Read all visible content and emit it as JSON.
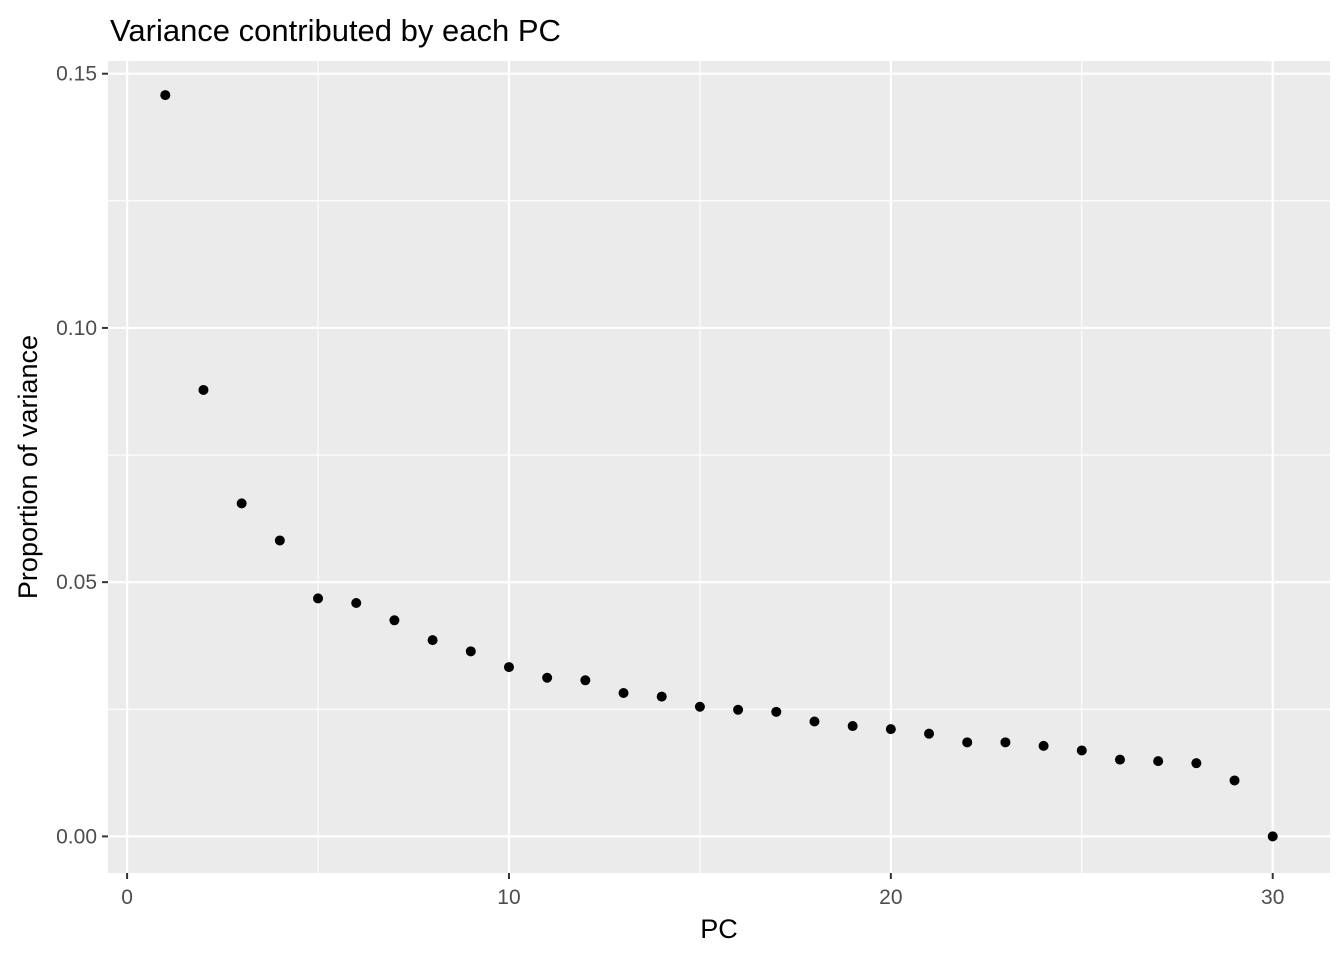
{
  "chart_data": {
    "type": "scatter",
    "title": "Variance contributed by each PC",
    "xlabel": "PC",
    "ylabel": "Proportion of variance",
    "xlim": [
      -0.5,
      31.5
    ],
    "ylim": [
      -0.0072,
      0.1525
    ],
    "x_ticks": [
      0,
      10,
      20,
      30
    ],
    "x_tick_labels": [
      "0",
      "10",
      "20",
      "30"
    ],
    "y_ticks": [
      0,
      0.05,
      0.1,
      0.15
    ],
    "y_tick_labels": [
      "0.00",
      "0.05",
      "0.10",
      "0.15"
    ],
    "grid": true,
    "background": "#ebebeb",
    "grid_color": "#ffffff",
    "point_color": "#000000",
    "series": [
      {
        "x": [
          1,
          2,
          3,
          4,
          5,
          6,
          7,
          8,
          9,
          10,
          11,
          12,
          13,
          14,
          15,
          16,
          17,
          18,
          19,
          20,
          21,
          22,
          23,
          24,
          25,
          26,
          27,
          28,
          29,
          30
        ],
        "y": [
          0.1458,
          0.0878,
          0.0655,
          0.0582,
          0.0468,
          0.0459,
          0.0425,
          0.0386,
          0.0364,
          0.0333,
          0.0312,
          0.0307,
          0.0282,
          0.0275,
          0.0255,
          0.0249,
          0.0245,
          0.0226,
          0.0217,
          0.0211,
          0.0202,
          0.0185,
          0.0185,
          0.0178,
          0.0169,
          0.0151,
          0.0148,
          0.0144,
          0.011,
          0.0
        ]
      }
    ]
  }
}
